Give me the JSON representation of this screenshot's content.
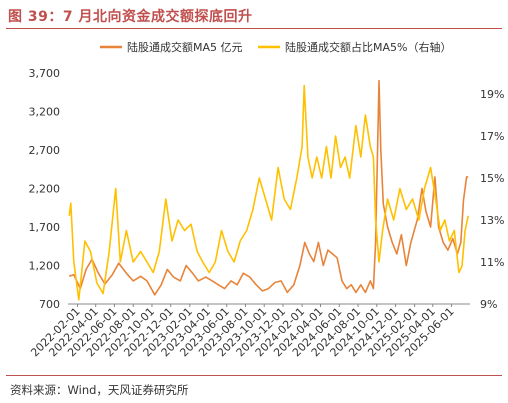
{
  "figure_title": "图 39：7 月北向资金成交额探底回升",
  "source_note": "资料来源：Wind，天风证券研究所",
  "chart_data": {
    "type": "line",
    "title": "",
    "legend_position": "top",
    "grid": false,
    "x_tick_labels": [
      "2022-02-01",
      "2022-04-01",
      "2022-06-01",
      "2022-08-01",
      "2022-10-01",
      "2022-12-01",
      "2023-02-01",
      "2023-04-01",
      "2023-06-01",
      "2023-08-01",
      "2023-10-01",
      "2023-12-01",
      "2024-02-01",
      "2024-04-01",
      "2024-06-01",
      "2024-08-01",
      "2024-10-01",
      "2024-12-01",
      "2025-02-01",
      "2025-04-01",
      "2025-06-01"
    ],
    "x_range": [
      "2022-01-01",
      "2025-07-31"
    ],
    "left_axis": {
      "ylim": [
        700,
        3700
      ],
      "ticks": [
        700,
        1200,
        1700,
        2200,
        2700,
        3200,
        3700
      ],
      "tick_labels": [
        "700",
        "1,200",
        "1,700",
        "2,200",
        "2,700",
        "3,200",
        "3,700"
      ]
    },
    "right_axis": {
      "ylim": [
        9,
        20
      ],
      "ticks": [
        9,
        11,
        13,
        15,
        17,
        19
      ],
      "tick_labels": [
        "9%",
        "11%",
        "13%",
        "15%",
        "17%",
        "19%"
      ]
    },
    "series": [
      {
        "name": "陆股通成交额MA5 亿元",
        "axis": "left",
        "color": "#e8843a",
        "points": [
          [
            "2022-01-05",
            1060
          ],
          [
            "2022-01-20",
            1080
          ],
          [
            "2022-02-10",
            900
          ],
          [
            "2022-03-01",
            1150
          ],
          [
            "2022-03-20",
            1280
          ],
          [
            "2022-04-10",
            1100
          ],
          [
            "2022-05-01",
            960
          ],
          [
            "2022-05-25",
            1080
          ],
          [
            "2022-06-15",
            1230
          ],
          [
            "2022-07-10",
            1100
          ],
          [
            "2022-08-01",
            1000
          ],
          [
            "2022-08-25",
            1060
          ],
          [
            "2022-09-15",
            1000
          ],
          [
            "2022-10-10",
            820
          ],
          [
            "2022-10-31",
            950
          ],
          [
            "2022-11-20",
            1150
          ],
          [
            "2022-12-10",
            1050
          ],
          [
            "2023-01-01",
            1000
          ],
          [
            "2023-01-20",
            1200
          ],
          [
            "2023-02-10",
            1100
          ],
          [
            "2023-03-01",
            1000
          ],
          [
            "2023-03-25",
            1050
          ],
          [
            "2023-04-15",
            1000
          ],
          [
            "2023-05-05",
            950
          ],
          [
            "2023-05-25",
            900
          ],
          [
            "2023-06-15",
            1000
          ],
          [
            "2023-07-05",
            950
          ],
          [
            "2023-07-25",
            1100
          ],
          [
            "2023-08-15",
            1050
          ],
          [
            "2023-09-05",
            950
          ],
          [
            "2023-09-25",
            870
          ],
          [
            "2023-10-15",
            900
          ],
          [
            "2023-11-05",
            980
          ],
          [
            "2023-11-25",
            1000
          ],
          [
            "2023-12-15",
            850
          ],
          [
            "2024-01-05",
            950
          ],
          [
            "2024-01-25",
            1200
          ],
          [
            "2024-02-10",
            1500
          ],
          [
            "2024-02-25",
            1350
          ],
          [
            "2024-03-10",
            1250
          ],
          [
            "2024-03-25",
            1500
          ],
          [
            "2024-04-10",
            1200
          ],
          [
            "2024-04-25",
            1400
          ],
          [
            "2024-05-10",
            1350
          ],
          [
            "2024-05-25",
            1300
          ],
          [
            "2024-06-10",
            1000
          ],
          [
            "2024-06-25",
            900
          ],
          [
            "2024-07-10",
            950
          ],
          [
            "2024-07-25",
            850
          ],
          [
            "2024-08-10",
            950
          ],
          [
            "2024-08-25",
            850
          ],
          [
            "2024-09-10",
            1000
          ],
          [
            "2024-09-20",
            900
          ],
          [
            "2024-09-27",
            1500
          ],
          [
            "2024-10-03",
            2600
          ],
          [
            "2024-10-08",
            3600
          ],
          [
            "2024-10-14",
            2700
          ],
          [
            "2024-10-22",
            2000
          ],
          [
            "2024-11-05",
            1700
          ],
          [
            "2024-11-20",
            1500
          ],
          [
            "2024-12-05",
            1350
          ],
          [
            "2024-12-20",
            1600
          ],
          [
            "2025-01-05",
            1200
          ],
          [
            "2025-01-20",
            1500
          ],
          [
            "2025-02-10",
            1800
          ],
          [
            "2025-02-25",
            2200
          ],
          [
            "2025-03-10",
            1900
          ],
          [
            "2025-03-25",
            1700
          ],
          [
            "2025-04-08",
            2350
          ],
          [
            "2025-04-20",
            1700
          ],
          [
            "2025-05-05",
            1500
          ],
          [
            "2025-05-20",
            1400
          ],
          [
            "2025-06-05",
            1550
          ],
          [
            "2025-06-20",
            1350
          ],
          [
            "2025-07-01",
            1500
          ],
          [
            "2025-07-10",
            2050
          ],
          [
            "2025-07-20",
            2350
          ],
          [
            "2025-07-25",
            2350
          ]
        ]
      },
      {
        "name": "陆股通成交额占比MA5%（右轴）",
        "axis": "right",
        "color": "#ffc000",
        "points": [
          [
            "2022-01-05",
            13.2
          ],
          [
            "2022-01-10",
            13.8
          ],
          [
            "2022-01-20",
            11.0
          ],
          [
            "2022-02-05",
            9.2
          ],
          [
            "2022-02-25",
            12.0
          ],
          [
            "2022-03-15",
            11.5
          ],
          [
            "2022-04-05",
            10.0
          ],
          [
            "2022-04-25",
            9.5
          ],
          [
            "2022-05-15",
            11.5
          ],
          [
            "2022-06-05",
            14.5
          ],
          [
            "2022-06-20",
            11.0
          ],
          [
            "2022-07-10",
            12.5
          ],
          [
            "2022-08-01",
            11.0
          ],
          [
            "2022-08-25",
            11.5
          ],
          [
            "2022-09-15",
            11.0
          ],
          [
            "2022-10-05",
            10.5
          ],
          [
            "2022-10-25",
            11.5
          ],
          [
            "2022-11-15",
            14.0
          ],
          [
            "2022-12-05",
            12.0
          ],
          [
            "2022-12-25",
            13.0
          ],
          [
            "2023-01-15",
            12.5
          ],
          [
            "2023-02-05",
            12.8
          ],
          [
            "2023-02-25",
            11.5
          ],
          [
            "2023-03-15",
            11.0
          ],
          [
            "2023-04-05",
            10.5
          ],
          [
            "2023-04-25",
            11.0
          ],
          [
            "2023-05-15",
            12.5
          ],
          [
            "2023-06-05",
            11.5
          ],
          [
            "2023-06-25",
            11.0
          ],
          [
            "2023-07-15",
            12.0
          ],
          [
            "2023-08-05",
            12.5
          ],
          [
            "2023-08-25",
            13.5
          ],
          [
            "2023-09-15",
            15.0
          ],
          [
            "2023-10-05",
            14.0
          ],
          [
            "2023-10-25",
            13.0
          ],
          [
            "2023-11-15",
            15.5
          ],
          [
            "2023-12-05",
            14.0
          ],
          [
            "2023-12-25",
            13.5
          ],
          [
            "2024-01-15",
            15.0
          ],
          [
            "2024-02-01",
            16.5
          ],
          [
            "2024-02-08",
            19.4
          ],
          [
            "2024-02-20",
            16.0
          ],
          [
            "2024-03-05",
            15.0
          ],
          [
            "2024-03-20",
            16.0
          ],
          [
            "2024-04-05",
            15.0
          ],
          [
            "2024-04-20",
            16.5
          ],
          [
            "2024-05-05",
            15.0
          ],
          [
            "2024-05-20",
            17.0
          ],
          [
            "2024-06-05",
            15.5
          ],
          [
            "2024-06-20",
            16.0
          ],
          [
            "2024-07-05",
            15.0
          ],
          [
            "2024-07-25",
            17.5
          ],
          [
            "2024-08-10",
            16.0
          ],
          [
            "2024-08-25",
            18.0
          ],
          [
            "2024-09-10",
            16.5
          ],
          [
            "2024-09-20",
            16.0
          ],
          [
            "2024-09-27",
            13.0
          ],
          [
            "2024-10-08",
            11.0
          ],
          [
            "2024-10-20",
            12.5
          ],
          [
            "2024-11-05",
            14.0
          ],
          [
            "2024-11-25",
            13.0
          ],
          [
            "2024-12-15",
            14.5
          ],
          [
            "2025-01-05",
            13.5
          ],
          [
            "2025-01-25",
            14.0
          ],
          [
            "2025-02-15",
            13.0
          ],
          [
            "2025-03-05",
            14.5
          ],
          [
            "2025-03-25",
            15.5
          ],
          [
            "2025-04-10",
            14.0
          ],
          [
            "2025-04-25",
            12.5
          ],
          [
            "2025-05-10",
            13.0
          ],
          [
            "2025-05-25",
            12.0
          ],
          [
            "2025-06-10",
            12.5
          ],
          [
            "2025-06-25",
            10.5
          ],
          [
            "2025-07-05",
            10.8
          ],
          [
            "2025-07-15",
            12.5
          ],
          [
            "2025-07-25",
            13.2
          ]
        ]
      }
    ]
  }
}
